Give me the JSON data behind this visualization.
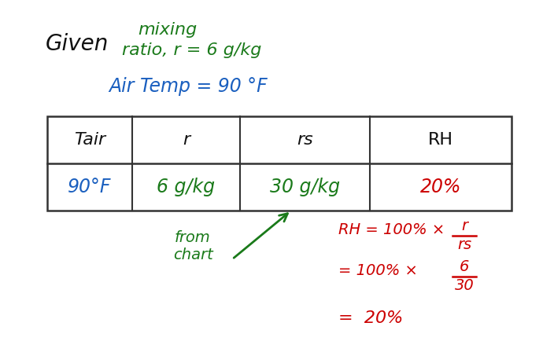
{
  "bg_color": "#ffffff",
  "given_text": "Given",
  "given_color": "#111111",
  "mixing_line1": "mixing",
  "mixing_line2": "ratio, r = 6 g/kg",
  "mixing_color": "#1a7a1a",
  "air_temp_text": "Air Temp = 90 °F",
  "air_temp_color": "#1a5fbf",
  "table_headers": [
    "Tair",
    "r",
    "rs",
    "RH"
  ],
  "table_header_color": "#111111",
  "table_values": [
    "90°F",
    "6 g/kg",
    "30 g/kg",
    "20%"
  ],
  "table_value_colors": [
    "#1a5fbf",
    "#1a7a1a",
    "#1a7a1a",
    "#cc0000"
  ],
  "from_chart_text": "from\nchart",
  "from_chart_color": "#1a7a1a",
  "eq_color": "#cc0000",
  "fig_width": 7.04,
  "fig_height": 4.48,
  "dpi": 100
}
